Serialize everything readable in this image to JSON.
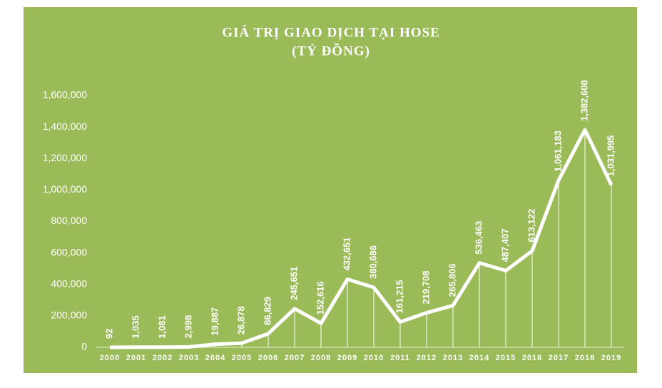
{
  "chart_data": {
    "type": "line",
    "title": "GIÁ TRỊ GIAO DỊCH TẠI HOSE",
    "subtitle": "(TỶ ĐỒNG)",
    "categories": [
      "2000",
      "2001",
      "2002",
      "2003",
      "2004",
      "2005",
      "2006",
      "2007",
      "2008",
      "2009",
      "2010",
      "2011",
      "2012",
      "2013",
      "2014",
      "2015",
      "2016",
      "2017",
      "2018",
      "2019"
    ],
    "values": [
      92,
      1035,
      1081,
      2998,
      19887,
      26878,
      86829,
      245651,
      152616,
      432651,
      380686,
      161215,
      219708,
      265806,
      536463,
      487407,
      613122,
      1061183,
      1382608,
      1031995
    ],
    "value_labels": [
      "92",
      "1,035",
      "1,081",
      "2,998",
      "19,887",
      "26,878",
      "86,829",
      "245,651",
      "152,616",
      "432,651",
      "380,686",
      "161,215",
      "219,708",
      "265,806",
      "536,463",
      "487,407",
      "613,122",
      "1,061,183",
      "1,382,608",
      "1,031,995"
    ],
    "color": "#ffffff",
    "background": "#9bbb59",
    "ylim": [
      0,
      1600000
    ],
    "yticks": [
      {
        "value": 0,
        "label": "0"
      },
      {
        "value": 200000,
        "label": "200,000"
      },
      {
        "value": 400000,
        "label": "400,000"
      },
      {
        "value": 600000,
        "label": "600,000"
      },
      {
        "value": 800000,
        "label": "800,000"
      },
      {
        "value": 1000000,
        "label": "1,000,000"
      },
      {
        "value": 1200000,
        "label": "1,200,000"
      },
      {
        "value": 1400000,
        "label": "1,400,000"
      },
      {
        "value": 1600000,
        "label": "1,600,000"
      }
    ],
    "drop_lines": true
  }
}
